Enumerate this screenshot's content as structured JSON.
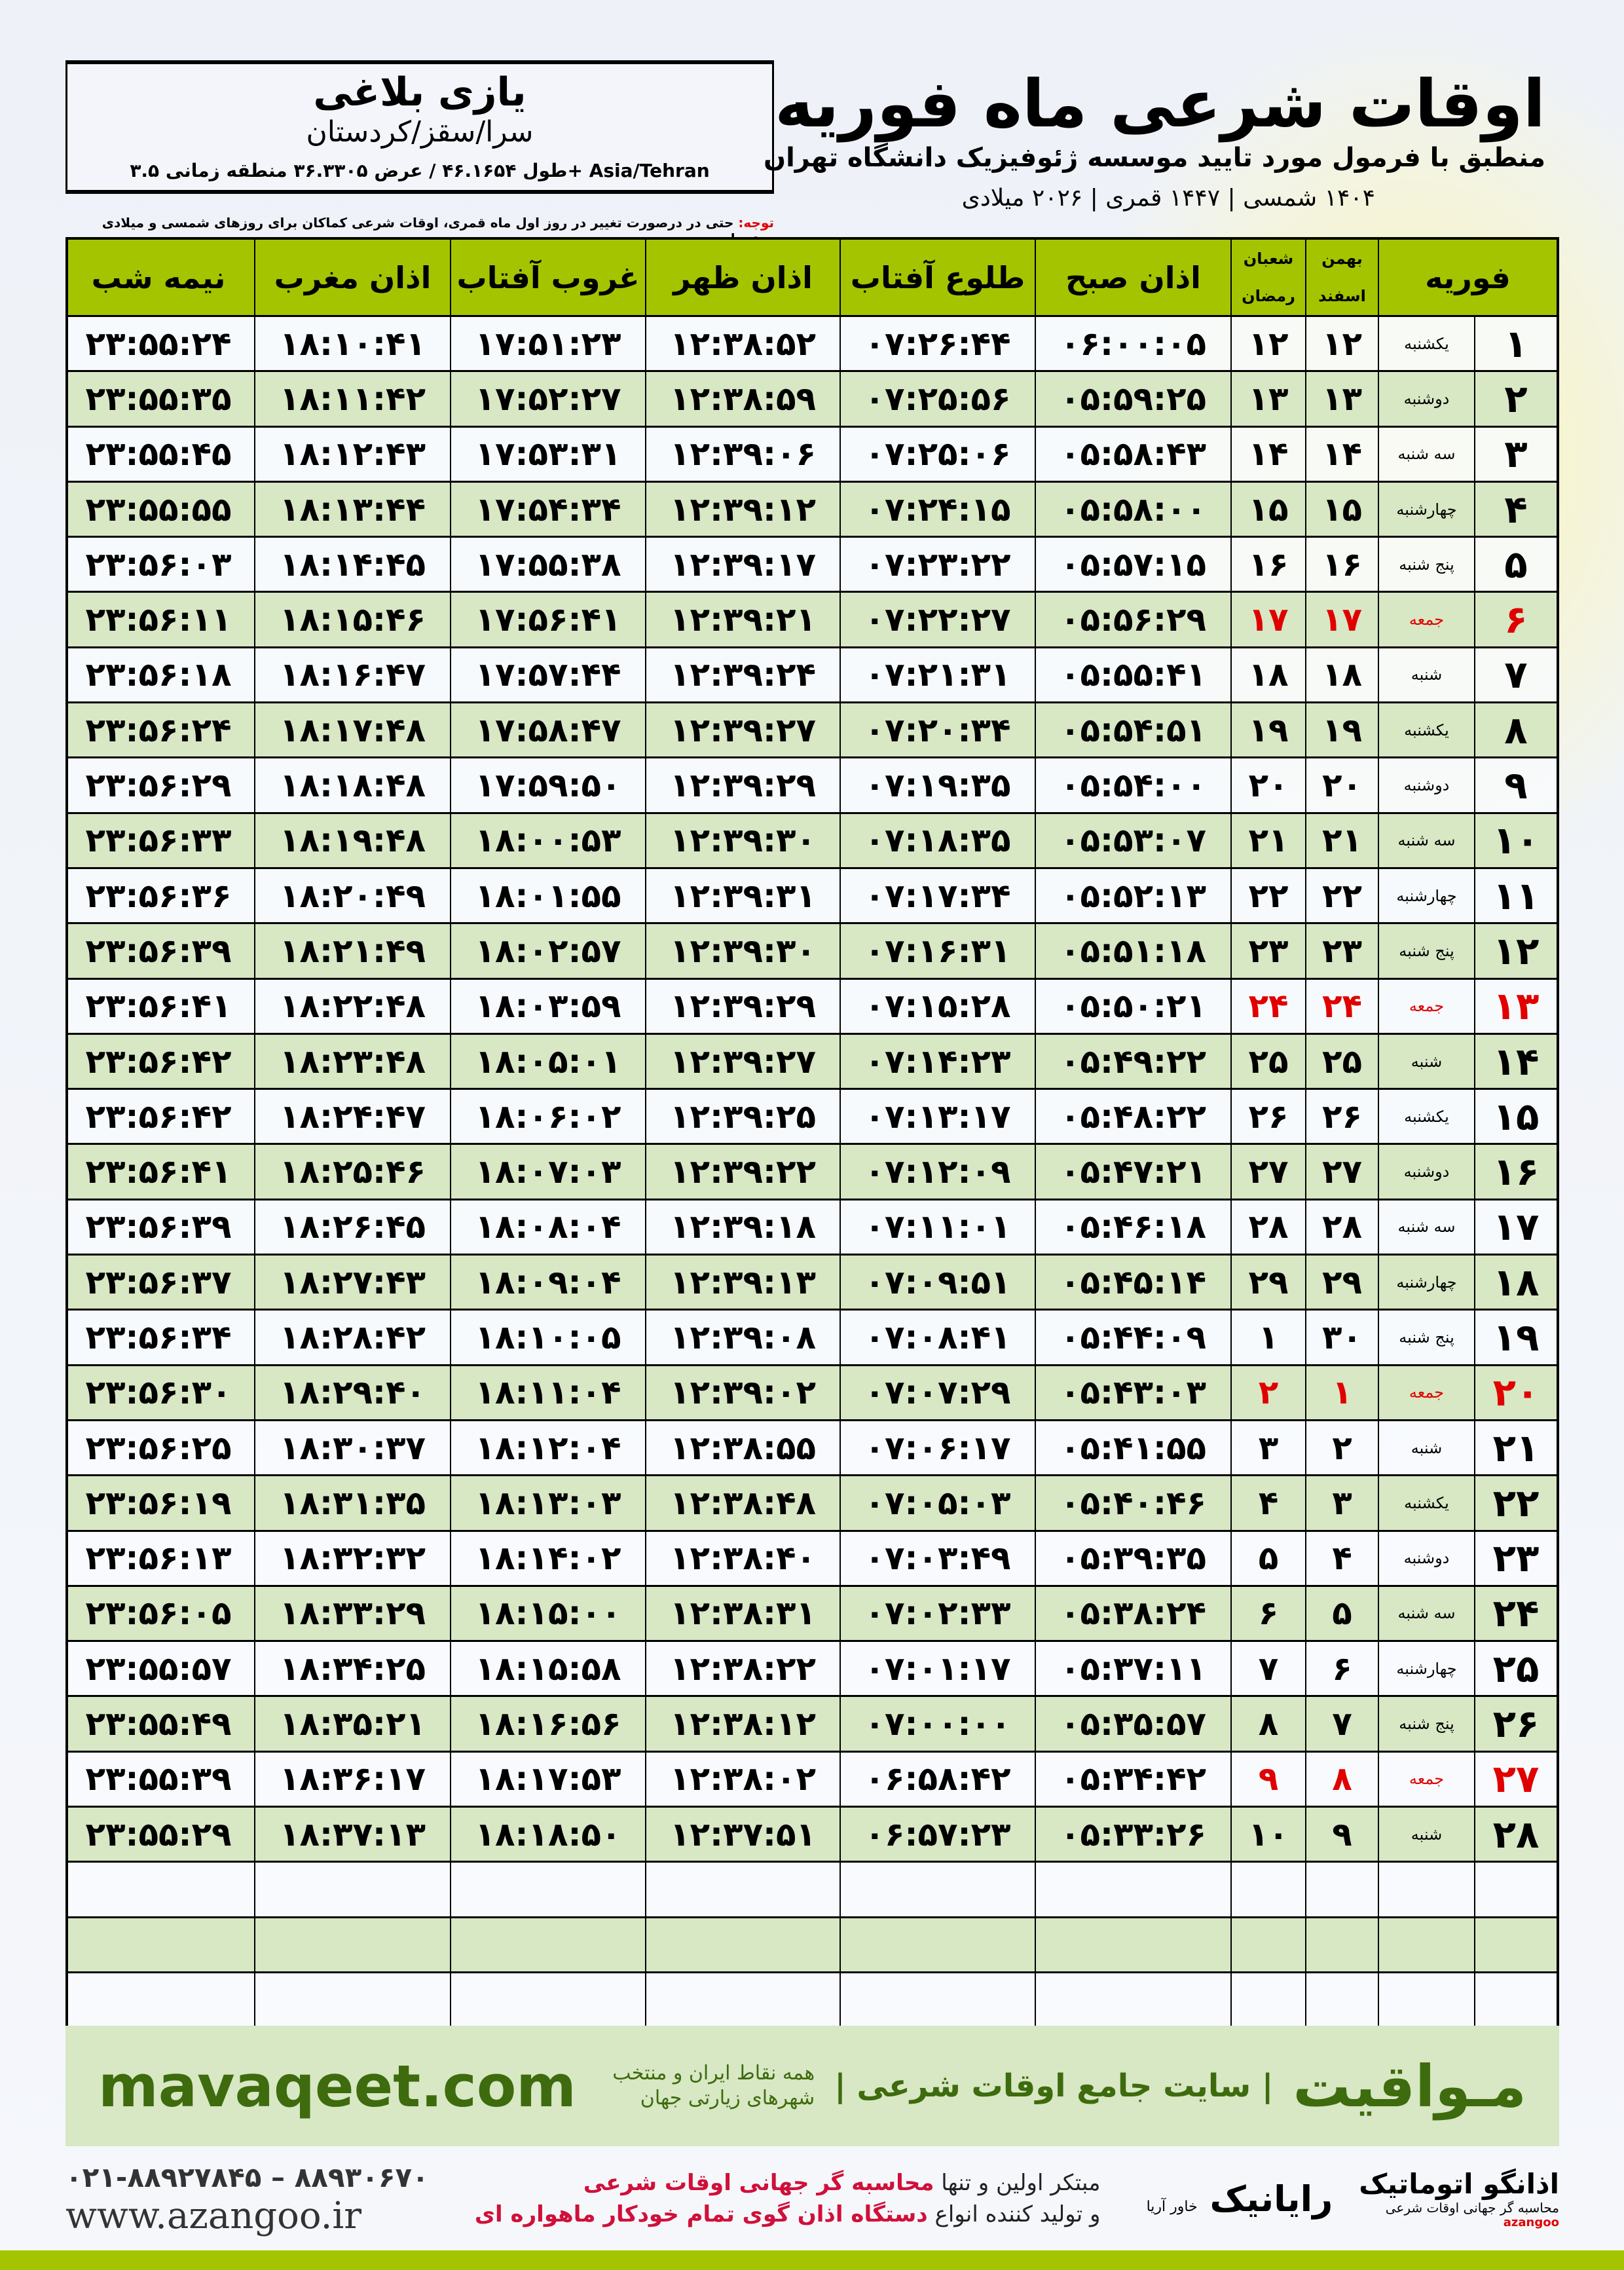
{
  "location": {
    "name": "یازی بلاغی",
    "region": "سرا/سقز/کردستان",
    "coords": "طول ۴۶.۱۶۵۴ / عرض ۳۶.۳۳۰۵ منطقه زمانی ۳.۵+ Asia/Tehran"
  },
  "header": {
    "title": "اوقات شرعی ماه فوریه",
    "subtitle": "منطبق با فرمول مورد تایید موسسه ژئوفیزیک دانشگاه تهران",
    "dates": "۱۴۰۴ شمسی | ۱۴۴۷ قمری | ۲۰۲۶ میلادی"
  },
  "note": {
    "label": "توجه:",
    "text": " حتی در درصورت تغییر در روز اول ماه قمری، اوقات شرعی کماکان برای روزهای شمسی و میلادی معتبر است."
  },
  "columns": {
    "month": "فوریه",
    "solar_top": "بهمن",
    "solar_bottom": "اسفند",
    "lunar_top": "شعبان",
    "lunar_bottom": "رمضان",
    "fajr": "اذان صبح",
    "sunrise": "طلوع آفتاب",
    "dhuhr": "اذان ظهر",
    "sunset": "غروب آفتاب",
    "maghrib": "اذان مغرب",
    "midnight": "نیمه شب"
  },
  "colors": {
    "header": "#a5c400",
    "row_alt": "#d8e7c4",
    "friday": "#e00000",
    "brand": "#3d6b0d"
  },
  "rows": [
    [
      "۱",
      "یکشنبه",
      "۱۲",
      "۱۲",
      "۰۶:۰۰:۰۵",
      "۰۷:۲۶:۴۴",
      "۱۲:۳۸:۵۲",
      "۱۷:۵۱:۲۳",
      "۱۸:۱۰:۴۱",
      "۲۳:۵۵:۲۴"
    ],
    [
      "۲",
      "دوشنبه",
      "۱۳",
      "۱۳",
      "۰۵:۵۹:۲۵",
      "۰۷:۲۵:۵۶",
      "۱۲:۳۸:۵۹",
      "۱۷:۵۲:۲۷",
      "۱۸:۱۱:۴۲",
      "۲۳:۵۵:۳۵"
    ],
    [
      "۳",
      "سه شنبه",
      "۱۴",
      "۱۴",
      "۰۵:۵۸:۴۳",
      "۰۷:۲۵:۰۶",
      "۱۲:۳۹:۰۶",
      "۱۷:۵۳:۳۱",
      "۱۸:۱۲:۴۳",
      "۲۳:۵۵:۴۵"
    ],
    [
      "۴",
      "چهارشنبه",
      "۱۵",
      "۱۵",
      "۰۵:۵۸:۰۰",
      "۰۷:۲۴:۱۵",
      "۱۲:۳۹:۱۲",
      "۱۷:۵۴:۳۴",
      "۱۸:۱۳:۴۴",
      "۲۳:۵۵:۵۵"
    ],
    [
      "۵",
      "پنج شنبه",
      "۱۶",
      "۱۶",
      "۰۵:۵۷:۱۵",
      "۰۷:۲۳:۲۲",
      "۱۲:۳۹:۱۷",
      "۱۷:۵۵:۳۸",
      "۱۸:۱۴:۴۵",
      "۲۳:۵۶:۰۳"
    ],
    [
      "۶",
      "جمعه",
      "۱۷",
      "۱۷",
      "۰۵:۵۶:۲۹",
      "۰۷:۲۲:۲۷",
      "۱۲:۳۹:۲۱",
      "۱۷:۵۶:۴۱",
      "۱۸:۱۵:۴۶",
      "۲۳:۵۶:۱۱"
    ],
    [
      "۷",
      "شنبه",
      "۱۸",
      "۱۸",
      "۰۵:۵۵:۴۱",
      "۰۷:۲۱:۳۱",
      "۱۲:۳۹:۲۴",
      "۱۷:۵۷:۴۴",
      "۱۸:۱۶:۴۷",
      "۲۳:۵۶:۱۸"
    ],
    [
      "۸",
      "یکشنبه",
      "۱۹",
      "۱۹",
      "۰۵:۵۴:۵۱",
      "۰۷:۲۰:۳۴",
      "۱۲:۳۹:۲۷",
      "۱۷:۵۸:۴۷",
      "۱۸:۱۷:۴۸",
      "۲۳:۵۶:۲۴"
    ],
    [
      "۹",
      "دوشنبه",
      "۲۰",
      "۲۰",
      "۰۵:۵۴:۰۰",
      "۰۷:۱۹:۳۵",
      "۱۲:۳۹:۲۹",
      "۱۷:۵۹:۵۰",
      "۱۸:۱۸:۴۸",
      "۲۳:۵۶:۲۹"
    ],
    [
      "۱۰",
      "سه شنبه",
      "۲۱",
      "۲۱",
      "۰۵:۵۳:۰۷",
      "۰۷:۱۸:۳۵",
      "۱۲:۳۹:۳۰",
      "۱۸:۰۰:۵۳",
      "۱۸:۱۹:۴۸",
      "۲۳:۵۶:۳۳"
    ],
    [
      "۱۱",
      "چهارشنبه",
      "۲۲",
      "۲۲",
      "۰۵:۵۲:۱۳",
      "۰۷:۱۷:۳۴",
      "۱۲:۳۹:۳۱",
      "۱۸:۰۱:۵۵",
      "۱۸:۲۰:۴۹",
      "۲۳:۵۶:۳۶"
    ],
    [
      "۱۲",
      "پنج شنبه",
      "۲۳",
      "۲۳",
      "۰۵:۵۱:۱۸",
      "۰۷:۱۶:۳۱",
      "۱۲:۳۹:۳۰",
      "۱۸:۰۲:۵۷",
      "۱۸:۲۱:۴۹",
      "۲۳:۵۶:۳۹"
    ],
    [
      "۱۳",
      "جمعه",
      "۲۴",
      "۲۴",
      "۰۵:۵۰:۲۱",
      "۰۷:۱۵:۲۸",
      "۱۲:۳۹:۲۹",
      "۱۸:۰۳:۵۹",
      "۱۸:۲۲:۴۸",
      "۲۳:۵۶:۴۱"
    ],
    [
      "۱۴",
      "شنبه",
      "۲۵",
      "۲۵",
      "۰۵:۴۹:۲۲",
      "۰۷:۱۴:۲۳",
      "۱۲:۳۹:۲۷",
      "۱۸:۰۵:۰۱",
      "۱۸:۲۳:۴۸",
      "۲۳:۵۶:۴۲"
    ],
    [
      "۱۵",
      "یکشنبه",
      "۲۶",
      "۲۶",
      "۰۵:۴۸:۲۲",
      "۰۷:۱۳:۱۷",
      "۱۲:۳۹:۲۵",
      "۱۸:۰۶:۰۲",
      "۱۸:۲۴:۴۷",
      "۲۳:۵۶:۴۲"
    ],
    [
      "۱۶",
      "دوشنبه",
      "۲۷",
      "۲۷",
      "۰۵:۴۷:۲۱",
      "۰۷:۱۲:۰۹",
      "۱۲:۳۹:۲۲",
      "۱۸:۰۷:۰۳",
      "۱۸:۲۵:۴۶",
      "۲۳:۵۶:۴۱"
    ],
    [
      "۱۷",
      "سه شنبه",
      "۲۸",
      "۲۸",
      "۰۵:۴۶:۱۸",
      "۰۷:۱۱:۰۱",
      "۱۲:۳۹:۱۸",
      "۱۸:۰۸:۰۴",
      "۱۸:۲۶:۴۵",
      "۲۳:۵۶:۳۹"
    ],
    [
      "۱۸",
      "چهارشنبه",
      "۲۹",
      "۲۹",
      "۰۵:۴۵:۱۴",
      "۰۷:۰۹:۵۱",
      "۱۲:۳۹:۱۳",
      "۱۸:۰۹:۰۴",
      "۱۸:۲۷:۴۳",
      "۲۳:۵۶:۳۷"
    ],
    [
      "۱۹",
      "پنج شنبه",
      "۳۰",
      "۱",
      "۰۵:۴۴:۰۹",
      "۰۷:۰۸:۴۱",
      "۱۲:۳۹:۰۸",
      "۱۸:۱۰:۰۵",
      "۱۸:۲۸:۴۲",
      "۲۳:۵۶:۳۴"
    ],
    [
      "۲۰",
      "جمعه",
      "۱",
      "۲",
      "۰۵:۴۳:۰۳",
      "۰۷:۰۷:۲۹",
      "۱۲:۳۹:۰۲",
      "۱۸:۱۱:۰۴",
      "۱۸:۲۹:۴۰",
      "۲۳:۵۶:۳۰"
    ],
    [
      "۲۱",
      "شنبه",
      "۲",
      "۳",
      "۰۵:۴۱:۵۵",
      "۰۷:۰۶:۱۷",
      "۱۲:۳۸:۵۵",
      "۱۸:۱۲:۰۴",
      "۱۸:۳۰:۳۷",
      "۲۳:۵۶:۲۵"
    ],
    [
      "۲۲",
      "یکشنبه",
      "۳",
      "۴",
      "۰۵:۴۰:۴۶",
      "۰۷:۰۵:۰۳",
      "۱۲:۳۸:۴۸",
      "۱۸:۱۳:۰۳",
      "۱۸:۳۱:۳۵",
      "۲۳:۵۶:۱۹"
    ],
    [
      "۲۳",
      "دوشنبه",
      "۴",
      "۵",
      "۰۵:۳۹:۳۵",
      "۰۷:۰۳:۴۹",
      "۱۲:۳۸:۴۰",
      "۱۸:۱۴:۰۲",
      "۱۸:۳۲:۳۲",
      "۲۳:۵۶:۱۳"
    ],
    [
      "۲۴",
      "سه شنبه",
      "۵",
      "۶",
      "۰۵:۳۸:۲۴",
      "۰۷:۰۲:۳۳",
      "۱۲:۳۸:۳۱",
      "۱۸:۱۵:۰۰",
      "۱۸:۳۳:۲۹",
      "۲۳:۵۶:۰۵"
    ],
    [
      "۲۵",
      "چهارشنبه",
      "۶",
      "۷",
      "۰۵:۳۷:۱۱",
      "۰۷:۰۱:۱۷",
      "۱۲:۳۸:۲۲",
      "۱۸:۱۵:۵۸",
      "۱۸:۳۴:۲۵",
      "۲۳:۵۵:۵۷"
    ],
    [
      "۲۶",
      "پنج شنبه",
      "۷",
      "۸",
      "۰۵:۳۵:۵۷",
      "۰۷:۰۰:۰۰",
      "۱۲:۳۸:۱۲",
      "۱۸:۱۶:۵۶",
      "۱۸:۳۵:۲۱",
      "۲۳:۵۵:۴۹"
    ],
    [
      "۲۷",
      "جمعه",
      "۸",
      "۹",
      "۰۵:۳۴:۴۲",
      "۰۶:۵۸:۴۲",
      "۱۲:۳۸:۰۲",
      "۱۸:۱۷:۵۳",
      "۱۸:۳۶:۱۷",
      "۲۳:۵۵:۳۹"
    ],
    [
      "۲۸",
      "شنبه",
      "۹",
      "۱۰",
      "۰۵:۳۳:۲۶",
      "۰۶:۵۷:۲۳",
      "۱۲:۳۷:۵۱",
      "۱۸:۱۸:۵۰",
      "۱۸:۳۷:۱۳",
      "۲۳:۵۵:۲۹"
    ]
  ],
  "friday_label": "جمعه",
  "footer": {
    "brand": "مـواقیت",
    "brand_sub": "| سایت جامع اوقات شرعی |",
    "brand_sub2": "همه نقاط ایران و منتخب شهرهای زیارتی جهان",
    "site": "mavaqeet.com",
    "phone": "۰۲۱-۸۸۹۲۷۸۴۵ – ۸۸۹۳۰۶۷۰",
    "web": "www.azangoo.ir",
    "adv1_a": "مبتکر اولین و تنها ",
    "adv1_b": "محاسبه گر جهانی اوقات شرعی",
    "adv2_a": "و تولید کننده انواع ",
    "adv2_b": "دستگاه اذان گوی تمام خودکار ماهواره ای",
    "raya": "رایانیک",
    "raya_sub": "خاور آریا",
    "az_name": "اذانگو اتوماتیک",
    "az_sub": "محاسبه گر جهانی اوقات شرعی",
    "az_en": "azangoo"
  }
}
